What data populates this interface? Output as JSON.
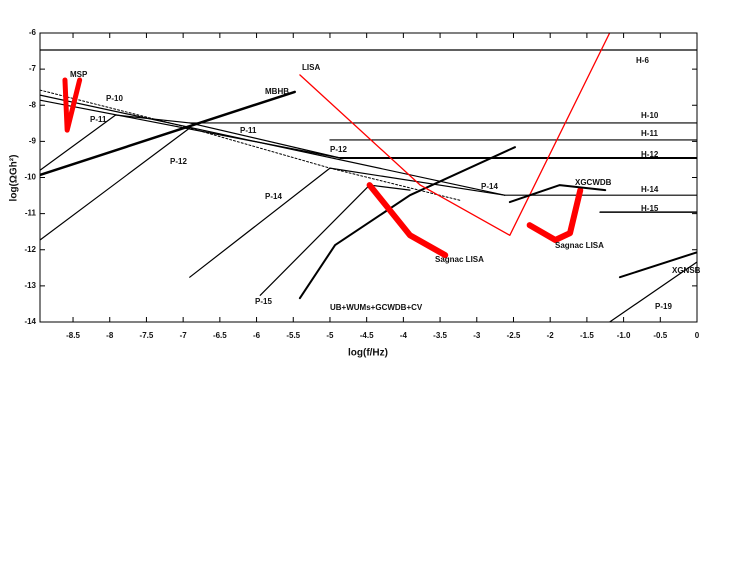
{
  "chart_data": {
    "type": "line",
    "x_label": "log(f/Hz)",
    "y_label": "log(ΩGh²)",
    "xlim": [
      -8.95,
      0
    ],
    "ylim": [
      -14,
      -6
    ],
    "xticks": [
      -8.5,
      -8,
      -7.5,
      -7,
      -6.5,
      -6,
      -5.5,
      -5,
      -4.5,
      -4,
      -3.5,
      -3,
      -2.5,
      -2,
      -1.5,
      {
        "value": -1,
        "label": "-1.0"
      },
      -0.5,
      0
    ],
    "yticks": [
      -6,
      -7,
      -8,
      -9,
      -10,
      -11,
      -12,
      -13,
      -14
    ],
    "series": [
      {
        "name": "H-6",
        "color": "#000000",
        "width": 1.2,
        "x": [
          -8.95,
          0
        ],
        "values": [
          -6.47,
          -6.47
        ]
      },
      {
        "name": "H-10",
        "color": "#000000",
        "width": 1.2,
        "x": [
          -6.91,
          0
        ],
        "values": [
          -8.49,
          -8.49
        ]
      },
      {
        "name": "H-11",
        "color": "#000000",
        "width": 1.2,
        "x": [
          -5.0,
          0
        ],
        "values": [
          -8.96,
          -8.96
        ]
      },
      {
        "name": "H-12",
        "color": "#000000",
        "width": 2,
        "x": [
          -4.86,
          0
        ],
        "values": [
          -9.46,
          -9.46
        ]
      },
      {
        "name": "H-14",
        "color": "#000000",
        "width": 1.2,
        "x": [
          -2.62,
          0
        ],
        "values": [
          -10.49,
          -10.49
        ]
      },
      {
        "name": "H-15",
        "color": "#000000",
        "width": 1.5,
        "x": [
          -1.32,
          0
        ],
        "values": [
          -10.96,
          -10.96
        ]
      },
      {
        "name": "P-10",
        "color": "#000000",
        "width": 1.2,
        "x": [
          -8.95,
          -2.62
        ],
        "values": [
          -7.72,
          -10.49
        ]
      },
      {
        "name": "P-11",
        "color": "#000000",
        "width": 1.2,
        "x": [
          -8.95,
          -4.86
        ],
        "values": [
          -7.86,
          -9.46
        ]
      },
      {
        "name": "P-11",
        "color": "#000000",
        "width": 1.2,
        "x": [
          -8.95,
          -7.92,
          -6.91
        ],
        "values": [
          -9.8,
          -8.27,
          -8.49
        ]
      },
      {
        "name": "MBHB",
        "color": "#000000",
        "width": 2.5,
        "x": [
          -8.95,
          -5.48
        ],
        "values": [
          -9.93,
          -7.63
        ]
      },
      {
        "name": "P-12",
        "color": "#000000",
        "width": 1.2,
        "x": [
          -8.95,
          -6.91
        ],
        "values": [
          -11.73,
          -8.63
        ]
      },
      {
        "name": "P-14",
        "color": "#000000",
        "width": 1.2,
        "x": [
          -6.91,
          -5.0
        ],
        "values": [
          -12.76,
          -9.74
        ]
      },
      {
        "name": "P-15",
        "color": "#000000",
        "width": 1.2,
        "x": [
          -5.95,
          -4.46,
          -3.91
        ],
        "values": [
          -13.26,
          -10.21,
          -10.35
        ]
      },
      {
        "name": "UB+WUMs+GCWDB+CV",
        "color": "#000000",
        "width": 2,
        "x": [
          -5.41,
          -4.93,
          -3.91,
          -2.48
        ],
        "values": [
          -13.34,
          -11.87,
          -10.49,
          -9.16
        ]
      },
      {
        "color": "#000000",
        "width": 1,
        "dashed": true,
        "x": [
          -8.95,
          -6.91,
          -5.0,
          -3.23
        ],
        "values": [
          -7.58,
          -8.63,
          -9.74,
          -10.63
        ]
      },
      {
        "name": "P-12",
        "color": "#000000",
        "width": 1.2,
        "x": [
          -6.91,
          -4.86
        ],
        "values": [
          -8.49,
          -9.46
        ]
      },
      {
        "name": "P-14",
        "color": "#000000",
        "width": 1.2,
        "x": [
          -5.0,
          -2.62
        ],
        "values": [
          -9.74,
          -10.49
        ]
      },
      {
        "name": "LISA",
        "color": "#ff0000",
        "width": 1.3,
        "x": [
          -5.41,
          -3.77,
          -2.55,
          -1.19
        ],
        "values": [
          -7.16,
          -10.21,
          -11.6,
          -6
        ]
      },
      {
        "name": "Sagnac LISA",
        "color": "#ff0000",
        "width": 6,
        "x": [
          -4.46,
          -3.91,
          -3.43
        ],
        "values": [
          -10.21,
          -11.6,
          -12.15
        ]
      },
      {
        "name": "Sagnac LISA",
        "color": "#ff0000",
        "width": 6,
        "x": [
          -2.28,
          -1.93,
          -1.73,
          -1.59
        ],
        "values": [
          -11.32,
          -11.73,
          -11.54,
          -10.35
        ]
      },
      {
        "name": "MSP",
        "color": "#ff0000",
        "width": 5,
        "x": [
          -8.61,
          -8.58,
          -8.41
        ],
        "values": [
          -7.3,
          -8.69,
          -7.3
        ]
      },
      {
        "name": "XGCWDB",
        "color": "#000000",
        "width": 2,
        "x": [
          -2.55,
          -1.87,
          -1.25
        ],
        "values": [
          -10.68,
          -10.21,
          -10.35
        ]
      },
      {
        "name": "XGNSB",
        "color": "#000000",
        "width": 2,
        "x": [
          -1.05,
          0
        ],
        "values": [
          -12.76,
          -12.07
        ]
      },
      {
        "name": "P-19",
        "color": "#000000",
        "width": 1.2,
        "x": [
          -1.19,
          0
        ],
        "values": [
          -14,
          -12.34
        ]
      }
    ]
  }
}
